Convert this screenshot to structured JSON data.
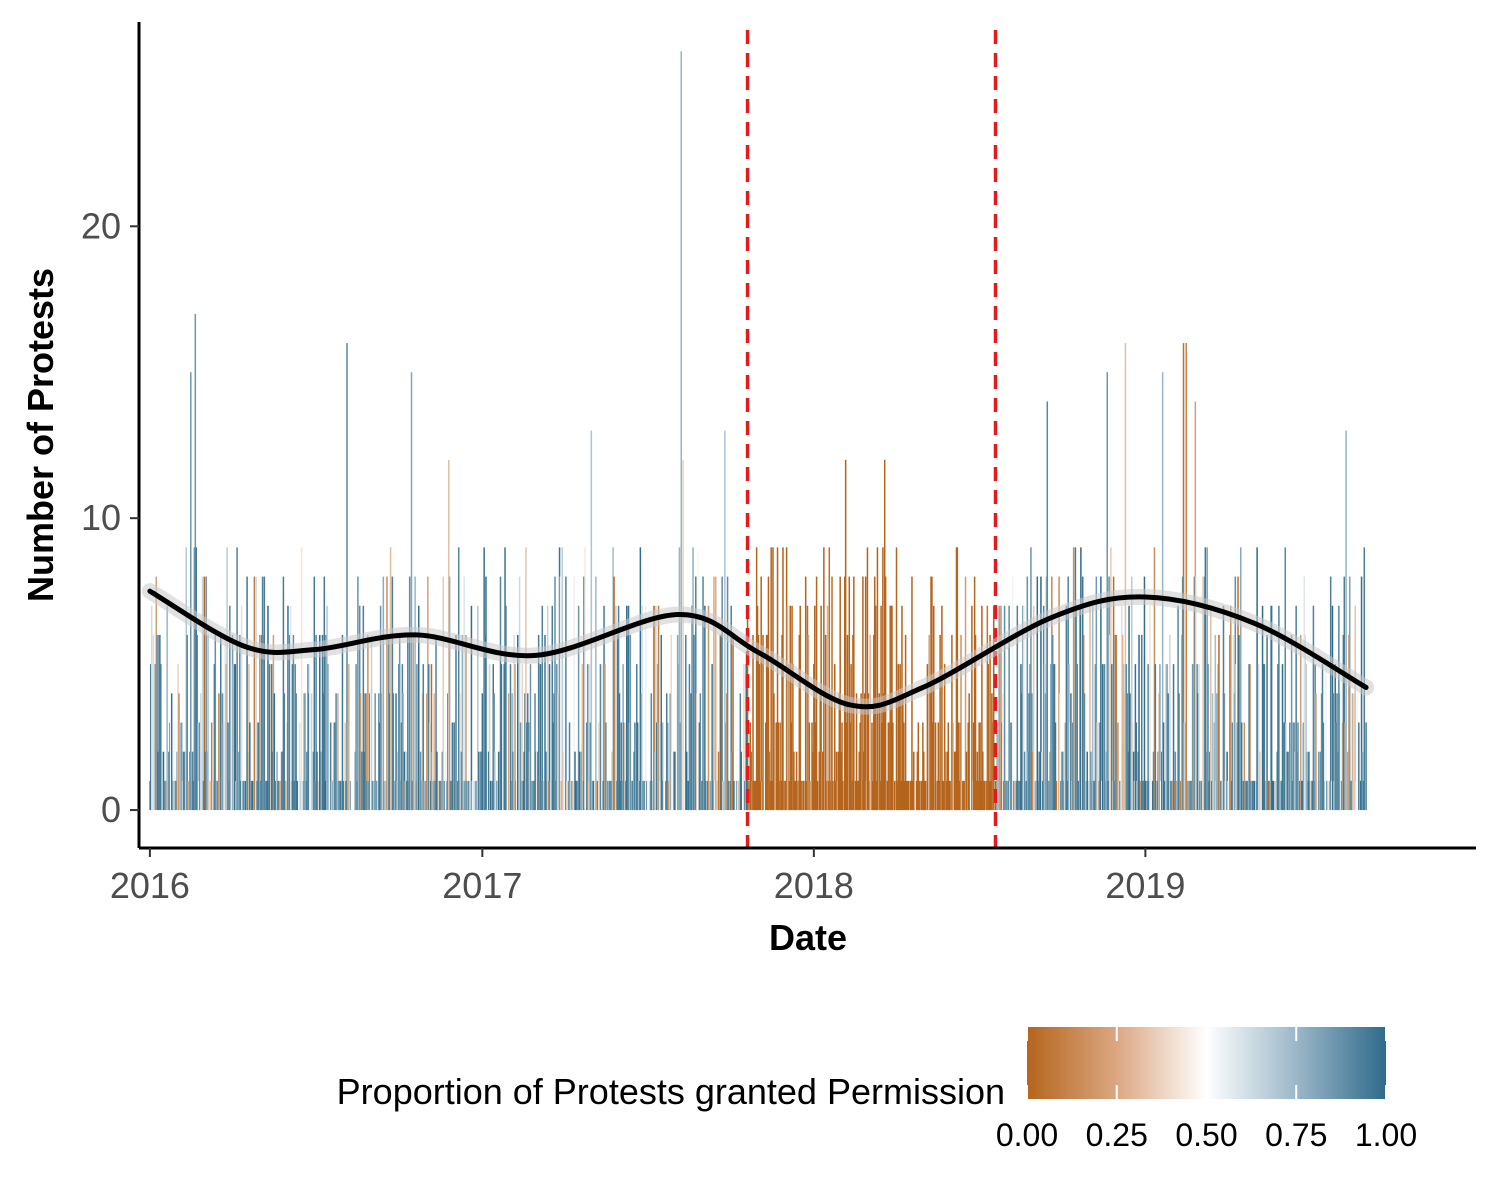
{
  "chart_data": {
    "type": "bar",
    "xlabel": "Date",
    "ylabel": "Number of Protests",
    "x_ticks": [
      "2016",
      "2017",
      "2018",
      "2019"
    ],
    "y_ticks": [
      "0",
      "10",
      "20"
    ],
    "xlim": [
      "2015-12-20",
      "2019-12-31"
    ],
    "ylim": [
      -1.3,
      27
    ],
    "grid": false,
    "colors": {
      "low": "#b5651d",
      "mid": "#ffffff",
      "high": "#2f6b8a",
      "smooth_line": "#000000",
      "vline": "#e41a1c"
    },
    "vlines": [
      "2017-10-20",
      "2018-07-20"
    ],
    "color_scale": {
      "title": "Proportion of Protests granted Permission",
      "breaks": [
        "0.00",
        "0.25",
        "0.50",
        "0.75",
        "1.00"
      ],
      "range": [
        0,
        1
      ],
      "position": "bottom"
    },
    "bars": {
      "description": "Daily protest counts from 2016-01-01 to 2019-09-01",
      "start": "2016-01-01",
      "end": "2019-09-01",
      "peaks": [
        {
          "date": "2016-02-15",
          "value": 15,
          "proportion": 0.85
        },
        {
          "date": "2016-02-20",
          "value": 17,
          "proportion": 0.85
        },
        {
          "date": "2016-08-05",
          "value": 16,
          "proportion": 0.9
        },
        {
          "date": "2016-10-15",
          "value": 15,
          "proportion": 0.8
        },
        {
          "date": "2016-11-25",
          "value": 12,
          "proportion": 0.3
        },
        {
          "date": "2017-05-01",
          "value": 13,
          "proportion": 0.7
        },
        {
          "date": "2017-07-20",
          "value": 13,
          "proportion": 0.5
        },
        {
          "date": "2017-08-08",
          "value": 26,
          "proportion": 0.75
        },
        {
          "date": "2017-08-10",
          "value": 12,
          "proportion": 0.35
        },
        {
          "date": "2017-09-25",
          "value": 13,
          "proportion": 0.7
        },
        {
          "date": "2018-02-05",
          "value": 12,
          "proportion": 0.0
        },
        {
          "date": "2018-03-20",
          "value": 12,
          "proportion": 0.0
        },
        {
          "date": "2018-09-15",
          "value": 14,
          "proportion": 0.9
        },
        {
          "date": "2018-11-20",
          "value": 15,
          "proportion": 0.85
        },
        {
          "date": "2018-12-10",
          "value": 16,
          "proportion": 0.3
        },
        {
          "date": "2019-01-20",
          "value": 15,
          "proportion": 0.75
        },
        {
          "date": "2019-02-12",
          "value": 16,
          "proportion": 0.05
        },
        {
          "date": "2019-02-15",
          "value": 16,
          "proportion": 0.1
        },
        {
          "date": "2019-02-25",
          "value": 14,
          "proportion": 0.2
        },
        {
          "date": "2019-08-10",
          "value": 13,
          "proportion": 0.75
        }
      ]
    },
    "smooth": [
      {
        "x": "2016-01-01",
        "y": 7.5
      },
      {
        "x": "2016-04-15",
        "y": 5.6
      },
      {
        "x": "2016-07-01",
        "y": 5.5
      },
      {
        "x": "2016-10-20",
        "y": 6.0
      },
      {
        "x": "2017-03-01",
        "y": 5.3
      },
      {
        "x": "2017-08-05",
        "y": 6.7
      },
      {
        "x": "2017-11-01",
        "y": 5.4
      },
      {
        "x": "2018-02-10",
        "y": 3.6
      },
      {
        "x": "2018-05-01",
        "y": 4.2
      },
      {
        "x": "2018-09-20",
        "y": 6.6
      },
      {
        "x": "2019-01-01",
        "y": 7.3
      },
      {
        "x": "2019-05-01",
        "y": 6.4
      },
      {
        "x": "2019-09-01",
        "y": 4.2
      }
    ]
  }
}
